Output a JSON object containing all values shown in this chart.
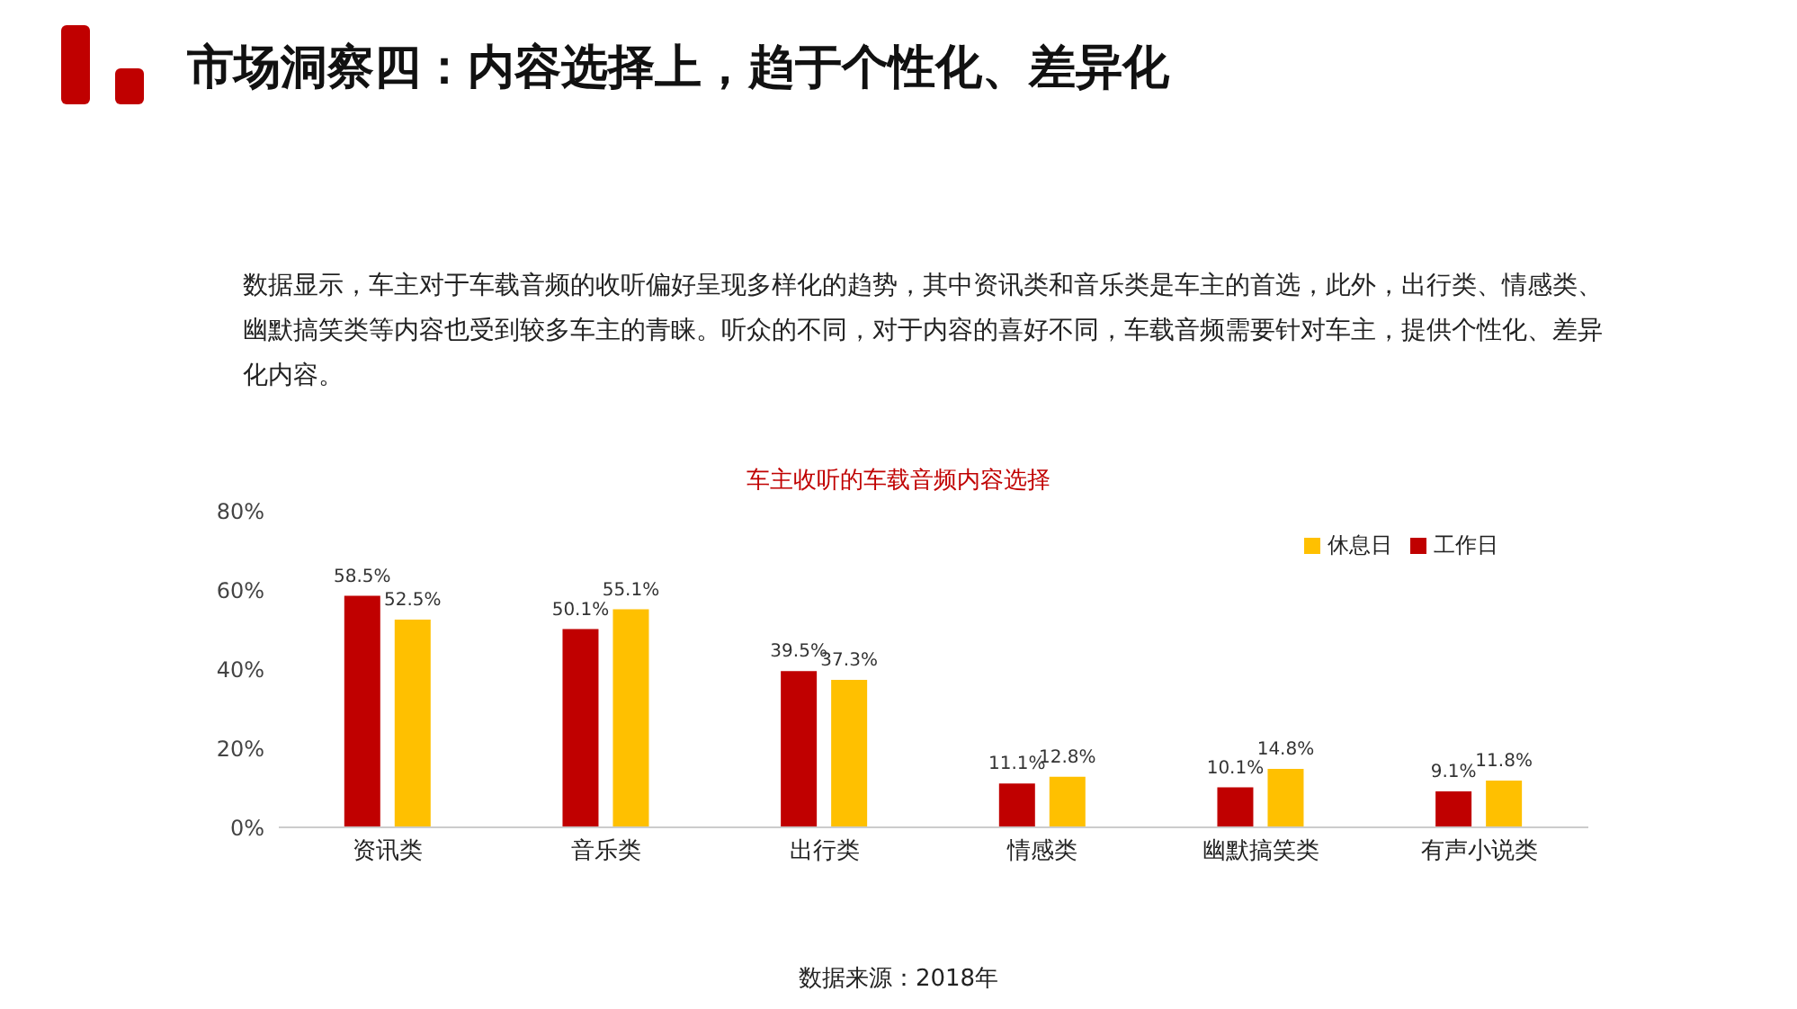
{
  "chart_data": {
    "type": "bar",
    "title": "市场洞察四：内容选择上，趋于个性化、差异化",
    "subtitle": "车主收听的车载音频内容选择",
    "annotations": [
      "数据显示，车主对于车载音频的收听偏好呈现多样化的趋势，其中资讯类和音乐类是车主的首选，此外，出行类、情感类、幽默搞笑类等内容也受到较多车主的青睐。听众的不同，对于内容的喜好不同，车载音频需要针对车主，提供个性化、差异化内容。",
      "数据来源：2018年"
    ],
    "categories": [
      "资讯类",
      "音乐类",
      "出行类",
      "情感类",
      "幽默搞笑类",
      "有声小说类"
    ],
    "series": [
      {
        "name": "工作日",
        "color": "#c00000",
        "values": [
          58.5,
          50.1,
          39.5,
          11.1,
          10.1,
          9.1
        ],
        "value_labels": [
          "58.5%",
          "50.1%",
          "39.5%",
          "11.1%",
          "10.1%",
          "9.1%"
        ]
      },
      {
        "name": "休息日",
        "color": "#ffc000",
        "values": [
          52.5,
          55.1,
          37.3,
          12.8,
          14.8,
          11.8
        ],
        "value_labels": [
          "52.5%",
          "55.1%",
          "37.3%",
          "12.8%",
          "14.8%",
          "11.8%"
        ]
      }
    ],
    "ylim": [
      0,
      80
    ],
    "yticks": [
      {
        "value": 0,
        "label": "0%"
      },
      {
        "value": 20,
        "label": "20%"
      },
      {
        "value": 40,
        "label": "40%"
      },
      {
        "value": 60,
        "label": "60%"
      },
      {
        "value": 80,
        "label": "80%"
      }
    ],
    "grid": false,
    "legend": "top right"
  }
}
